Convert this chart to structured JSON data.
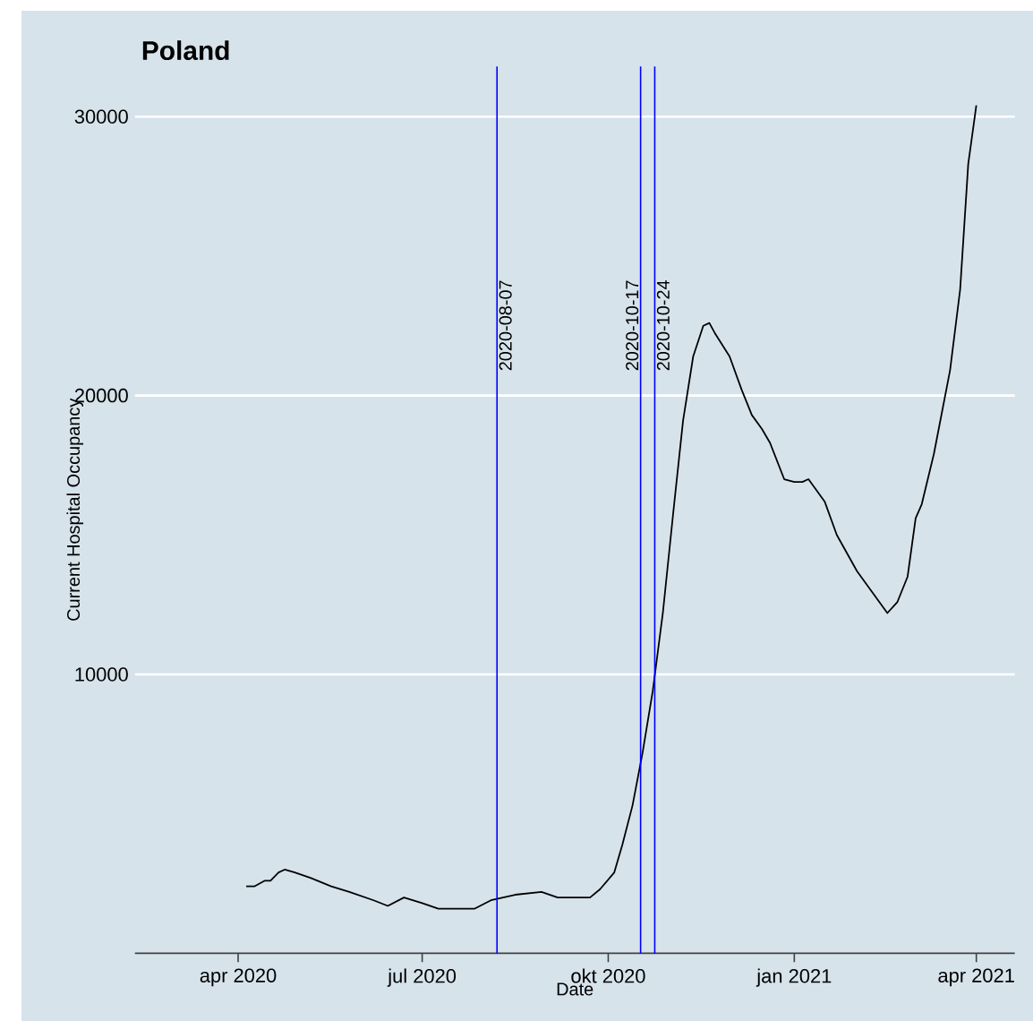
{
  "chart_data": {
    "type": "line",
    "title": "Poland",
    "xlabel": "Date",
    "ylabel": "Current Hospital Occupancy",
    "x": [
      "2020-04-05",
      "2020-04-09",
      "2020-04-14",
      "2020-04-17",
      "2020-04-21",
      "2020-04-24",
      "2020-04-29",
      "2020-05-07",
      "2020-05-17",
      "2020-05-26",
      "2020-06-07",
      "2020-06-14",
      "2020-06-22",
      "2020-07-01",
      "2020-07-09",
      "2020-07-17",
      "2020-07-27",
      "2020-08-04",
      "2020-08-16",
      "2020-08-29",
      "2020-09-06",
      "2020-09-14",
      "2020-09-22",
      "2020-09-27",
      "2020-10-04",
      "2020-10-08",
      "2020-10-13",
      "2020-10-18",
      "2020-10-23",
      "2020-10-28",
      "2020-11-02",
      "2020-11-07",
      "2020-11-12",
      "2020-11-17",
      "2020-11-20",
      "2020-11-23",
      "2020-11-30",
      "2020-12-06",
      "2020-12-11",
      "2020-12-16",
      "2020-12-20",
      "2020-12-27",
      "2021-01-01",
      "2021-01-05",
      "2021-01-08",
      "2021-01-16",
      "2021-01-22",
      "2021-02-01",
      "2021-02-11",
      "2021-02-16",
      "2021-02-21",
      "2021-02-26",
      "2021-03-02",
      "2021-03-05",
      "2021-03-11",
      "2021-03-19",
      "2021-03-24",
      "2021-03-28",
      "2021-04-01"
    ],
    "series": [
      {
        "color": "#000000",
        "values": [
          2400,
          2400,
          2600,
          2600,
          2900,
          3000,
          2900,
          2700,
          2400,
          2200,
          1900,
          1700,
          2000,
          1800,
          1600,
          1600,
          1600,
          1900,
          2100,
          2200,
          2000,
          2000,
          2000,
          2300,
          2900,
          3900,
          5300,
          7200,
          9400,
          12200,
          15700,
          19100,
          21400,
          22500,
          22600,
          22200,
          21400,
          20200,
          19300,
          18800,
          18300,
          17000,
          16900,
          16900,
          17000,
          16200,
          15000,
          13700,
          12700,
          12200,
          12600,
          13500,
          15600,
          16100,
          17900,
          20900,
          23800,
          28300,
          30400
        ]
      }
    ],
    "xlim": [
      "2020-02-10",
      "2021-04-20"
    ],
    "xticks": [
      {
        "value": "2020-04-01",
        "label": "apr 2020"
      },
      {
        "value": "2020-07-01",
        "label": "jul 2020"
      },
      {
        "value": "2020-10-01",
        "label": "okt 2020"
      },
      {
        "value": "2021-01-01",
        "label": "jan 2021"
      },
      {
        "value": "2021-04-01",
        "label": "apr 2021"
      }
    ],
    "ylim": [
      0,
      31800
    ],
    "yticks": [
      10000,
      20000,
      30000
    ],
    "grid": "y",
    "ref_lines": [
      {
        "axis": "x",
        "value": "2020-08-07",
        "label": "2020-08-07",
        "color": "#0000ff"
      },
      {
        "axis": "x",
        "value": "2020-10-17",
        "label": "2020-10-17",
        "color": "#0000ff"
      },
      {
        "axis": "x",
        "value": "2020-10-24",
        "label": "2020-10-24",
        "color": "#0000ff"
      }
    ]
  }
}
